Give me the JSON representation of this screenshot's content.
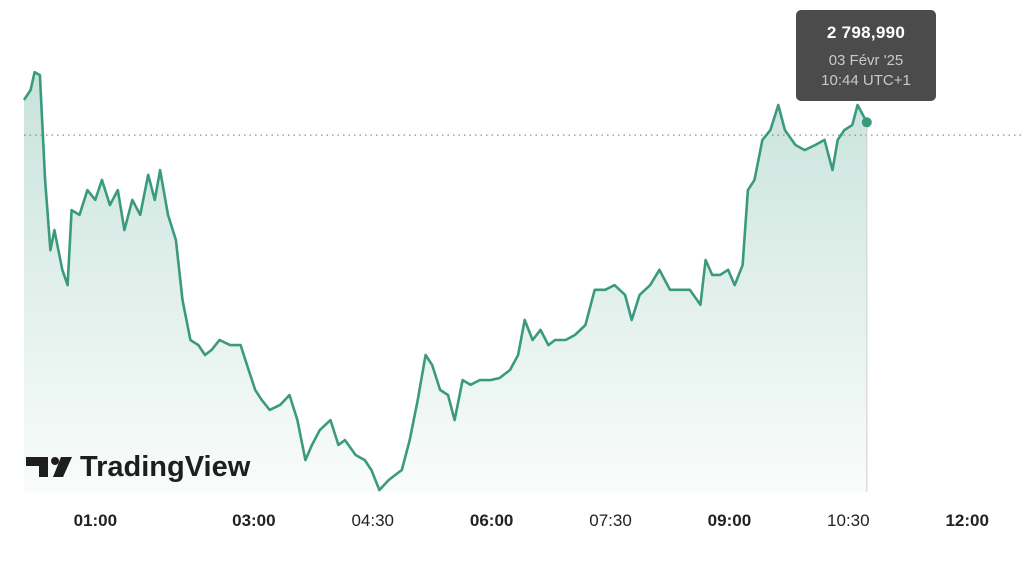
{
  "chart_data": {
    "type": "area",
    "color": "#3a9a7e",
    "x": [
      6,
      11,
      14,
      18,
      22,
      26,
      29,
      35,
      39,
      42,
      48,
      54,
      60,
      65,
      71,
      77,
      82,
      88,
      94,
      100,
      105,
      109,
      115,
      121,
      126,
      132,
      138,
      143,
      148,
      154,
      162,
      170,
      176,
      181,
      186,
      192,
      200,
      207,
      213,
      219,
      224,
      230,
      238,
      244,
      249,
      257,
      264,
      269,
      275,
      282,
      287,
      292,
      298,
      304,
      310,
      315,
      321,
      327,
      332,
      338,
      344,
      351,
      359,
      366,
      374,
      380,
      385,
      391,
      397,
      403,
      408,
      416,
      423,
      431,
      438,
      446,
      453,
      461,
      466,
      472,
      480,
      487,
      495,
      503,
      510,
      518,
      522,
      527,
      533,
      539,
      544,
      550,
      554,
      559,
      565,
      571,
      577,
      582,
      590,
      597,
      605,
      612,
      618,
      622,
      627,
      633,
      637,
      644
    ],
    "values": [
      2805.6,
      2808.5,
      2813.8,
      2812.9,
      2782.0,
      2761.3,
      2767.2,
      2755.5,
      2751.0,
      2773.1,
      2771.7,
      2779.0,
      2776.1,
      2782.0,
      2774.6,
      2779.0,
      2767.2,
      2776.1,
      2771.7,
      2783.5,
      2776.1,
      2784.9,
      2771.7,
      2764.3,
      2746.6,
      2734.8,
      2733.3,
      2730.4,
      2731.9,
      2734.8,
      2733.3,
      2733.3,
      2726.0,
      2720.1,
      2717.1,
      2714.2,
      2715.7,
      2718.6,
      2711.2,
      2699.4,
      2703.9,
      2708.3,
      2711.2,
      2703.9,
      2705.3,
      2700.9,
      2699.4,
      2696.5,
      2690.6,
      2693.5,
      2695.0,
      2696.5,
      2705.3,
      2717.1,
      2730.4,
      2727.4,
      2720.1,
      2718.6,
      2711.2,
      2723.0,
      2721.6,
      2723.0,
      2723.0,
      2723.6,
      2726.0,
      2730.4,
      2740.7,
      2734.8,
      2737.8,
      2733.3,
      2734.8,
      2734.8,
      2736.3,
      2739.2,
      2749.6,
      2749.6,
      2751.0,
      2748.1,
      2740.7,
      2748.1,
      2751.0,
      2755.5,
      2749.6,
      2749.6,
      2749.6,
      2745.2,
      2758.4,
      2754.0,
      2754.0,
      2755.5,
      2751.0,
      2756.9,
      2779.0,
      2782.0,
      2793.8,
      2796.7,
      2804.1,
      2796.7,
      2792.3,
      2790.8,
      2792.3,
      2793.8,
      2784.9,
      2793.8,
      2796.7,
      2798.2,
      2804.1,
      2798.99
    ],
    "xlim": [
      6,
      763
    ],
    "ylim": [
      2690,
      2815
    ],
    "xticks": [
      {
        "value": 60,
        "label": "01:00"
      },
      {
        "value": 180,
        "label": "03:00"
      },
      {
        "value": 270,
        "label": "04:30"
      },
      {
        "value": 360,
        "label": "06:00"
      },
      {
        "value": 450,
        "label": "07:30"
      },
      {
        "value": 540,
        "label": "09:00"
      },
      {
        "value": 630,
        "label": "10:30"
      },
      {
        "value": 720,
        "label": "12:00"
      }
    ],
    "reference_line": 2795.2,
    "tooltip": {
      "value": "2 798,990",
      "date": "03 Févr '25",
      "time": "10:44 UTC+1"
    },
    "watermark": "TradingView"
  }
}
